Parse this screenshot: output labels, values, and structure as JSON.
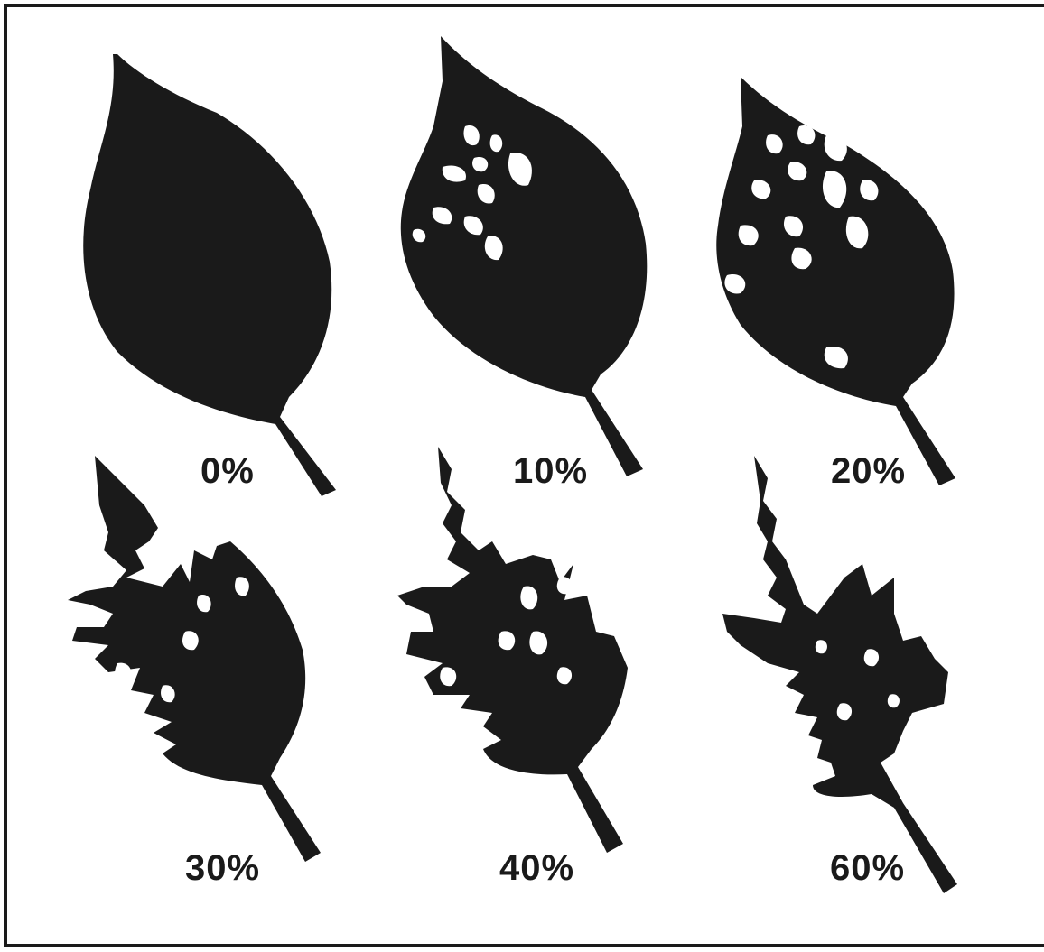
{
  "colors": {
    "ink": "#1a1a1a",
    "background": "#ffffff"
  },
  "leaves": [
    {
      "label": "0%",
      "damage_fraction": 0.0
    },
    {
      "label": "10%",
      "damage_fraction": 0.1
    },
    {
      "label": "20%",
      "damage_fraction": 0.2
    },
    {
      "label": "30%",
      "damage_fraction": 0.3
    },
    {
      "label": "40%",
      "damage_fraction": 0.4
    },
    {
      "label": "60%",
      "damage_fraction": 0.6
    }
  ]
}
